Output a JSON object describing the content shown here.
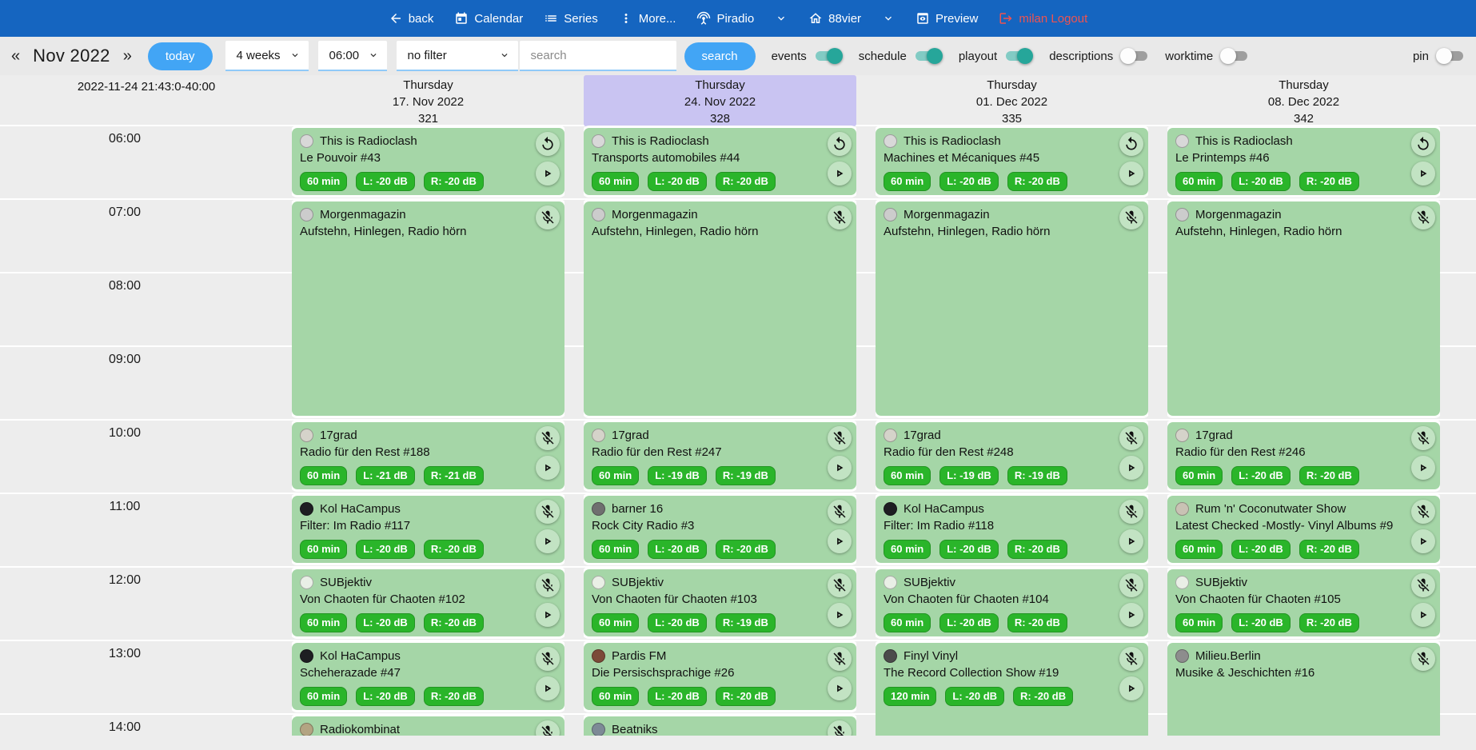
{
  "navbar": {
    "back": "back",
    "calendar": "Calendar",
    "series": "Series",
    "more": "More...",
    "piradio": "Piradio",
    "station": "88vier",
    "preview": "Preview",
    "logout": "milan Logout"
  },
  "toolbar": {
    "prev_arrow": "«",
    "month": "Nov 2022",
    "next_arrow": "»",
    "today_button": "today",
    "range_select": "4 weeks",
    "time_select": "06:00",
    "filter_select": "no filter",
    "search_placeholder": "search",
    "search_button": "search",
    "toggles": [
      {
        "label": "events",
        "on": true
      },
      {
        "label": "schedule",
        "on": true
      },
      {
        "label": "playout",
        "on": true
      },
      {
        "label": "descriptions",
        "on": false
      },
      {
        "label": "worktime",
        "on": false
      },
      {
        "label": "pin",
        "on": false
      }
    ]
  },
  "colors": {
    "navbar_blue": "#1565c0",
    "accent_blue": "#42a5f5",
    "toggle_teal": "#26a69a",
    "event_green": "#a5d6a7",
    "badge_green": "#2ab52a",
    "highlight_lavender": "#c9c4f2",
    "logout_red": "#ef5350"
  },
  "calendar": {
    "timestamp": "2022-11-24 21:43:0-40:00",
    "start_hour": 6,
    "times": [
      "06:00",
      "07:00",
      "08:00",
      "09:00",
      "10:00",
      "11:00",
      "12:00",
      "13:00",
      "14:00"
    ],
    "columns": [
      {
        "weekday": "Thursday",
        "date": "17. Nov 2022",
        "day_number": "321",
        "highlight": false,
        "events": [
          {
            "show": "This is Radioclash",
            "episode": "Le Pouvoir #43",
            "start": 6,
            "hours": 1,
            "badges": [
              "60 min",
              "L: -20 dB",
              "R: -20 dB"
            ],
            "icons": [
              "replay",
              "play"
            ],
            "avatar": "#d8d8d8"
          },
          {
            "show": "Morgenmagazin",
            "episode": "Aufstehn, Hinlegen, Radio hörn",
            "start": 7,
            "hours": 3,
            "badges": [],
            "icons": [
              "mic-off"
            ],
            "avatar": "#cccccc"
          },
          {
            "show": "17grad",
            "episode": "Radio für den Rest #188",
            "start": 10,
            "hours": 1,
            "badges": [
              "60 min",
              "L: -21 dB",
              "R: -21 dB"
            ],
            "icons": [
              "mic-off",
              "play"
            ],
            "avatar": "#d5d3ca"
          },
          {
            "show": "Kol HaCampus",
            "episode": "Filter: Im Radio #117",
            "start": 11,
            "hours": 1,
            "badges": [
              "60 min",
              "L: -20 dB",
              "R: -20 dB"
            ],
            "icons": [
              "mic-off",
              "play"
            ],
            "avatar": "#1e1e22"
          },
          {
            "show": "SUBjektiv",
            "episode": "Von Chaoten für Chaoten #102",
            "start": 12,
            "hours": 1,
            "badges": [
              "60 min",
              "L: -20 dB",
              "R: -20 dB"
            ],
            "icons": [
              "mic-off",
              "play"
            ],
            "avatar": "#e9efe6"
          },
          {
            "show": "Kol HaCampus",
            "episode": "Scheherazade #47",
            "start": 13,
            "hours": 1,
            "badges": [
              "60 min",
              "L: -20 dB",
              "R: -20 dB"
            ],
            "icons": [
              "mic-off",
              "play"
            ],
            "avatar": "#1e1e22"
          },
          {
            "show": "Radiokombinat",
            "episode": "",
            "start": 14,
            "hours": 1,
            "badges": [],
            "icons": [
              "mic-off"
            ],
            "avatar": "#b3a482"
          }
        ]
      },
      {
        "weekday": "Thursday",
        "date": "24. Nov 2022",
        "day_number": "328",
        "highlight": true,
        "events": [
          {
            "show": "This is Radioclash",
            "episode": "Transports automobiles #44",
            "start": 6,
            "hours": 1,
            "badges": [
              "60 min",
              "L: -20 dB",
              "R: -20 dB"
            ],
            "icons": [
              "replay",
              "play"
            ],
            "avatar": "#d8d8d8"
          },
          {
            "show": "Morgenmagazin",
            "episode": "Aufstehn, Hinlegen, Radio hörn",
            "start": 7,
            "hours": 3,
            "badges": [],
            "icons": [
              "mic-off"
            ],
            "avatar": "#cccccc"
          },
          {
            "show": "17grad",
            "episode": "Radio für den Rest #247",
            "start": 10,
            "hours": 1,
            "badges": [
              "60 min",
              "L: -19 dB",
              "R: -19 dB"
            ],
            "icons": [
              "mic-off",
              "play"
            ],
            "avatar": "#d5d3ca"
          },
          {
            "show": "barner 16",
            "episode": "Rock City Radio #3",
            "start": 11,
            "hours": 1,
            "badges": [
              "60 min",
              "L: -20 dB",
              "R: -20 dB"
            ],
            "icons": [
              "mic-off",
              "play"
            ],
            "avatar": "#6f6f6f"
          },
          {
            "show": "SUBjektiv",
            "episode": "Von Chaoten für Chaoten #103",
            "start": 12,
            "hours": 1,
            "badges": [
              "60 min",
              "L: -20 dB",
              "R: -19 dB"
            ],
            "icons": [
              "mic-off",
              "play"
            ],
            "avatar": "#e9efe6"
          },
          {
            "show": "Pardis FM",
            "episode": "Die Persischsprachige #26",
            "start": 13,
            "hours": 1,
            "badges": [
              "60 min",
              "L: -20 dB",
              "R: -20 dB"
            ],
            "icons": [
              "mic-off",
              "play"
            ],
            "avatar": "#7c4a38"
          },
          {
            "show": "Beatniks",
            "episode": "",
            "start": 14,
            "hours": 1,
            "badges": [],
            "icons": [
              "mic-off"
            ],
            "avatar": "#7d8a96"
          }
        ]
      },
      {
        "weekday": "Thursday",
        "date": "01. Dec 2022",
        "day_number": "335",
        "highlight": false,
        "events": [
          {
            "show": "This is Radioclash",
            "episode": "Machines et Mécaniques #45",
            "start": 6,
            "hours": 1,
            "badges": [
              "60 min",
              "L: -20 dB",
              "R: -20 dB"
            ],
            "icons": [
              "replay",
              "play"
            ],
            "avatar": "#d8d8d8"
          },
          {
            "show": "Morgenmagazin",
            "episode": "Aufstehn, Hinlegen, Radio hörn",
            "start": 7,
            "hours": 3,
            "badges": [],
            "icons": [
              "mic-off"
            ],
            "avatar": "#cccccc"
          },
          {
            "show": "17grad",
            "episode": "Radio für den Rest #248",
            "start": 10,
            "hours": 1,
            "badges": [
              "60 min",
              "L: -19 dB",
              "R: -19 dB"
            ],
            "icons": [
              "mic-off",
              "play"
            ],
            "avatar": "#d5d3ca"
          },
          {
            "show": "Kol HaCampus",
            "episode": "Filter: Im Radio #118",
            "start": 11,
            "hours": 1,
            "badges": [
              "60 min",
              "L: -20 dB",
              "R: -20 dB"
            ],
            "icons": [
              "mic-off",
              "play"
            ],
            "avatar": "#1e1e22"
          },
          {
            "show": "SUBjektiv",
            "episode": "Von Chaoten für Chaoten #104",
            "start": 12,
            "hours": 1,
            "badges": [
              "60 min",
              "L: -20 dB",
              "R: -20 dB"
            ],
            "icons": [
              "mic-off",
              "play"
            ],
            "avatar": "#e9efe6"
          },
          {
            "show": "Finyl Vinyl",
            "episode": "The Record Collection Show #19",
            "start": 13,
            "hours": 2,
            "badges": [
              "120 min",
              "L: -20 dB",
              "R: -20 dB"
            ],
            "icons": [
              "mic-off",
              "play"
            ],
            "avatar": "#4b4b4b"
          }
        ]
      },
      {
        "weekday": "Thursday",
        "date": "08. Dec 2022",
        "day_number": "342",
        "highlight": false,
        "events": [
          {
            "show": "This is Radioclash",
            "episode": "Le Printemps #46",
            "start": 6,
            "hours": 1,
            "badges": [
              "60 min",
              "L: -20 dB",
              "R: -20 dB"
            ],
            "icons": [
              "replay",
              "play"
            ],
            "avatar": "#d8d8d8"
          },
          {
            "show": "Morgenmagazin",
            "episode": "Aufstehn, Hinlegen, Radio hörn",
            "start": 7,
            "hours": 3,
            "badges": [],
            "icons": [
              "mic-off"
            ],
            "avatar": "#cccccc"
          },
          {
            "show": "17grad",
            "episode": "Radio für den Rest #246",
            "start": 10,
            "hours": 1,
            "badges": [
              "60 min",
              "L: -20 dB",
              "R: -20 dB"
            ],
            "icons": [
              "mic-off",
              "play"
            ],
            "avatar": "#d5d3ca"
          },
          {
            "show": "Rum 'n' Coconutwater Show",
            "episode": "Latest Checked -Mostly- Vinyl Albums #9",
            "start": 11,
            "hours": 1,
            "badges": [
              "60 min",
              "L: -20 dB",
              "R: -20 dB"
            ],
            "icons": [
              "mic-off",
              "play"
            ],
            "avatar": "#c9c2b4"
          },
          {
            "show": "SUBjektiv",
            "episode": "Von Chaoten für Chaoten #105",
            "start": 12,
            "hours": 1,
            "badges": [
              "60 min",
              "L: -20 dB",
              "R: -20 dB"
            ],
            "icons": [
              "mic-off",
              "play"
            ],
            "avatar": "#e9efe6"
          },
          {
            "show": "Milieu.Berlin",
            "episode": "Musike & Jeschichten #16",
            "start": 13,
            "hours": 2,
            "badges": [],
            "icons": [
              "mic-off"
            ],
            "avatar": "#8d8d8d"
          }
        ]
      }
    ]
  }
}
